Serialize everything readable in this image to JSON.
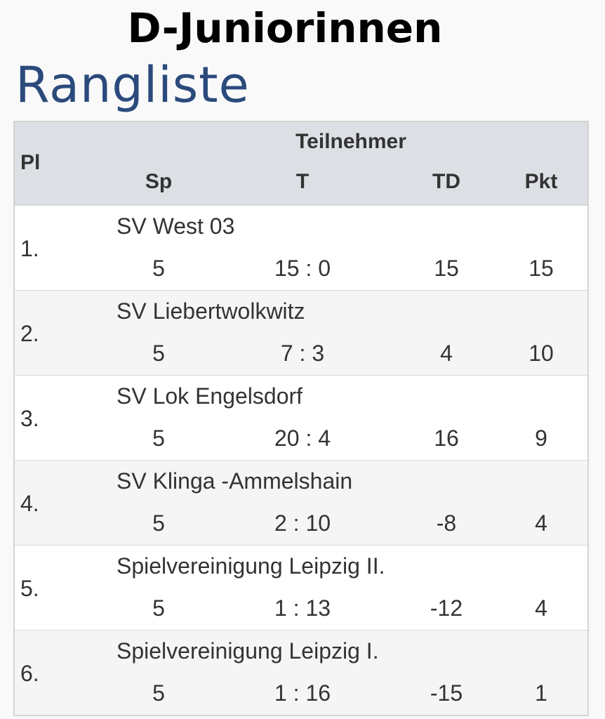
{
  "header": {
    "title": "D-Juniorinnen",
    "subtitle": "Rangliste"
  },
  "table": {
    "columns": {
      "place": "Pl",
      "team": "Teilnehmer",
      "games": "Sp",
      "goals": "T",
      "goal_diff": "TD",
      "points": "Pkt"
    },
    "rows": [
      {
        "place": "1.",
        "team": "SV West 03",
        "games": "5",
        "goals": "15 : 0",
        "goal_diff": "15",
        "points": "15"
      },
      {
        "place": "2.",
        "team": "SV Liebertwolkwitz",
        "games": "5",
        "goals": "7 : 3",
        "goal_diff": "4",
        "points": "10"
      },
      {
        "place": "3.",
        "team": "SV Lok Engelsdorf",
        "games": "5",
        "goals": "20 : 4",
        "goal_diff": "16",
        "points": "9"
      },
      {
        "place": "4.",
        "team": "SV Klinga -Ammelshain",
        "games": "5",
        "goals": "2 : 10",
        "goal_diff": "-8",
        "points": "4"
      },
      {
        "place": "5.",
        "team": "Spielvereinigung Leipzig II.",
        "games": "5",
        "goals": "1 : 13",
        "goal_diff": "-12",
        "points": "4"
      },
      {
        "place": "6.",
        "team": "Spielvereinigung Leipzig I.",
        "games": "5",
        "goals": "1 : 16",
        "goal_diff": "-15",
        "points": "1"
      }
    ]
  }
}
